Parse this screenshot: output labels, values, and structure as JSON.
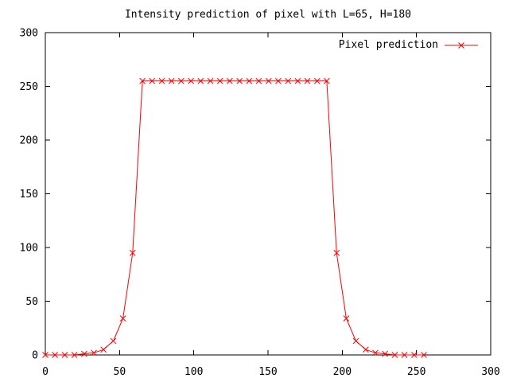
{
  "chart_data": {
    "type": "line",
    "title": "Intensity prediction of pixel with L=65, H=180",
    "xlabel": "",
    "ylabel": "",
    "xlim": [
      0,
      300
    ],
    "ylim": [
      0,
      300
    ],
    "x_ticks": [
      0,
      50,
      100,
      150,
      200,
      250,
      300
    ],
    "y_ticks": [
      0,
      50,
      100,
      150,
      200,
      250,
      300
    ],
    "grid": false,
    "legend_position": "top-right-inside",
    "plateau_value": 255,
    "series": [
      {
        "name": "Pixel prediction",
        "color": "#ff0000",
        "marker": "x",
        "x": [
          0,
          6.5,
          13.1,
          19.6,
          26.2,
          32.7,
          39.2,
          45.8,
          52.3,
          58.8,
          65.4,
          71.9,
          78.5,
          85.0,
          91.5,
          98.1,
          104.6,
          111.2,
          117.7,
          124.2,
          130.8,
          137.3,
          143.8,
          150.4,
          156.9,
          163.5,
          170.0,
          176.5,
          183.1,
          189.6,
          196.2,
          202.7,
          209.2,
          215.8,
          222.3,
          228.8,
          235.4,
          241.9,
          248.5,
          255.0
        ],
        "y": [
          0,
          0,
          0,
          0,
          1,
          2,
          5,
          13,
          34,
          95,
          255,
          255,
          255,
          255,
          255,
          255,
          255,
          255,
          255,
          255,
          255,
          255,
          255,
          255,
          255,
          255,
          255,
          255,
          255,
          255,
          95,
          34,
          13,
          5,
          2,
          1,
          0,
          0,
          0,
          0
        ]
      }
    ],
    "axis_color": "#000000",
    "background_color": "#ffffff"
  }
}
